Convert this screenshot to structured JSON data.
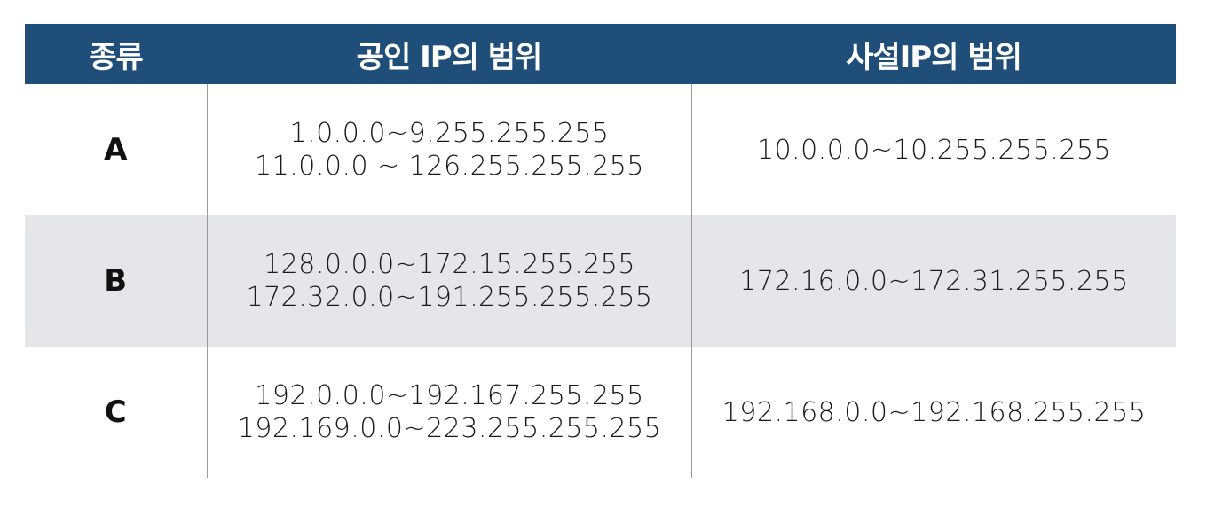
{
  "header": {
    "col_type": "종류",
    "col_public": "공인 IP의 범위",
    "col_private": "사설IP의 범위"
  },
  "rows": [
    {
      "type": "A",
      "public": [
        "1.0.0.0~9.255.255.255",
        "11.0.0.0 ~ 126.255.255.255"
      ],
      "private": "10.0.0.0~10.255.255.255"
    },
    {
      "type": "B",
      "public": [
        "128.0.0.0~172.15.255.255",
        "172.32.0.0~191.255.255.255"
      ],
      "private": "172.16.0.0~172.31.255.255"
    },
    {
      "type": "C",
      "public": [
        "192.0.0.0~192.167.255.255",
        "192.169.0.0~223.255.255.255"
      ],
      "private": "192.168.0.0~192.168.255.255"
    }
  ],
  "colors": {
    "header_bg": "#1f4e79",
    "header_text": "#ffffff",
    "shaded_row": "#e5e6ea",
    "divider": "#9a9a9a"
  }
}
